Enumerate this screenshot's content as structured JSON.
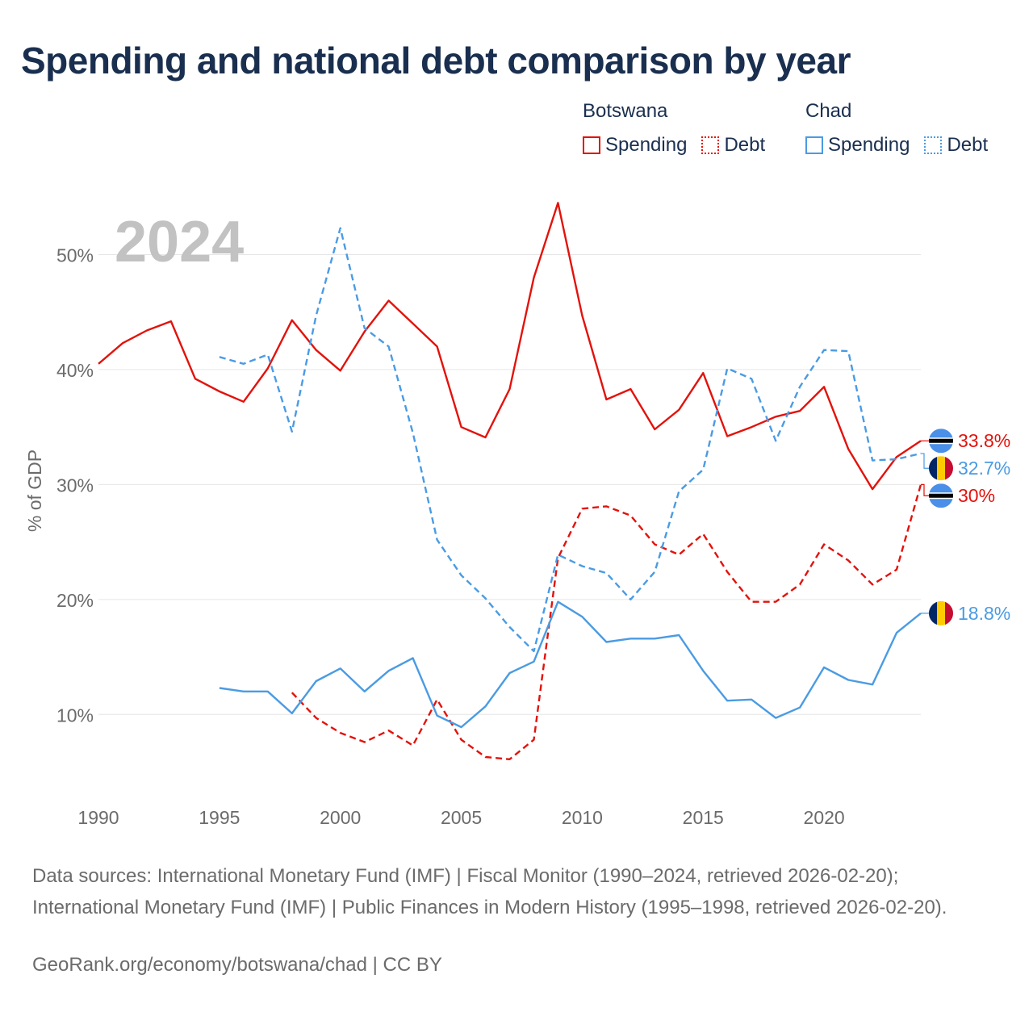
{
  "title": "Spending and national debt comparison by year",
  "legend": {
    "groups": [
      {
        "country": "Botswana",
        "color": "#e3120b",
        "items": [
          {
            "label": "Spending",
            "style": "solid"
          },
          {
            "label": "Debt",
            "style": "dotted"
          }
        ]
      },
      {
        "country": "Chad",
        "color": "#4a9be3",
        "items": [
          {
            "label": "Spending",
            "style": "solid"
          },
          {
            "label": "Debt",
            "style": "dotted"
          }
        ]
      }
    ]
  },
  "year_label": "2024",
  "source_text": "Data sources: International Monetary Fund (IMF) | Fiscal Monitor (1990–2024, retrieved 2026-02-20); International Monetary Fund (IMF) | Public Finances in Modern History (1995–1998, retrieved 2026-02-20).",
  "credit_text": "GeoRank.org/economy/botswana/chad | CC BY",
  "chart_data": {
    "type": "line",
    "title": "Spending and national debt comparison by year",
    "xlabel": "",
    "ylabel": "% of GDP",
    "xlim": [
      1990,
      2024
    ],
    "ylim": [
      3,
      56
    ],
    "x_ticks": [
      1990,
      1995,
      2000,
      2005,
      2010,
      2015,
      2020
    ],
    "x_tick_labels": [
      "1990",
      "1995",
      "2000",
      "2005",
      "2010",
      "2015",
      "2020"
    ],
    "y_ticks": [
      10,
      20,
      30,
      40,
      50
    ],
    "y_tick_labels": [
      "10%",
      "20%",
      "30%",
      "40%",
      "50%"
    ],
    "grid": true,
    "series": [
      {
        "name": "Botswana Spending",
        "country": "Botswana",
        "color": "#e3120b",
        "dash": "solid",
        "x": [
          1990,
          1991,
          1992,
          1993,
          1994,
          1995,
          1996,
          1997,
          1998,
          1999,
          2000,
          2001,
          2002,
          2003,
          2004,
          2005,
          2006,
          2007,
          2008,
          2009,
          2010,
          2011,
          2012,
          2013,
          2014,
          2015,
          2016,
          2017,
          2018,
          2019,
          2020,
          2021,
          2022,
          2023,
          2024
        ],
        "values": [
          40.5,
          42.3,
          43.4,
          44.2,
          39.2,
          38.1,
          37.2,
          40.1,
          44.3,
          41.7,
          39.9,
          43.3,
          46.0,
          44.0,
          42.0,
          35.0,
          34.1,
          38.3,
          48.0,
          54.5,
          44.7,
          37.4,
          38.3,
          34.8,
          36.5,
          39.7,
          34.2,
          35.0,
          35.9,
          36.4,
          38.5,
          33.1,
          29.6,
          32.4,
          33.8
        ],
        "end_label": "33.8%",
        "flag": "botswana"
      },
      {
        "name": "Botswana Debt",
        "country": "Botswana",
        "color": "#e3120b",
        "dash": "dashed",
        "x": [
          1998,
          1999,
          2000,
          2001,
          2002,
          2003,
          2004,
          2005,
          2006,
          2007,
          2008,
          2009,
          2010,
          2011,
          2012,
          2013,
          2014,
          2015,
          2016,
          2017,
          2018,
          2019,
          2020,
          2021,
          2022,
          2023,
          2024
        ],
        "values": [
          11.9,
          9.7,
          8.4,
          7.6,
          8.6,
          7.3,
          11.3,
          7.8,
          6.3,
          6.1,
          7.8,
          23.6,
          27.9,
          28.1,
          27.3,
          24.8,
          23.9,
          25.7,
          22.4,
          19.8,
          19.8,
          21.3,
          24.8,
          23.4,
          21.3,
          22.6,
          30.0
        ],
        "end_label": "30%",
        "flag": "botswana"
      },
      {
        "name": "Chad Spending",
        "country": "Chad",
        "color": "#4a9be3",
        "dash": "solid",
        "x": [
          1995,
          1996,
          1997,
          1998,
          1999,
          2000,
          2001,
          2002,
          2003,
          2004,
          2005,
          2006,
          2007,
          2008,
          2009,
          2010,
          2011,
          2012,
          2013,
          2014,
          2015,
          2016,
          2017,
          2018,
          2019,
          2020,
          2021,
          2022,
          2023,
          2024
        ],
        "values": [
          12.3,
          12.0,
          12.0,
          10.1,
          12.9,
          14.0,
          12.0,
          13.8,
          14.9,
          9.9,
          8.9,
          10.7,
          13.6,
          14.6,
          19.8,
          18.5,
          16.3,
          16.6,
          16.6,
          16.9,
          13.8,
          11.2,
          11.3,
          9.7,
          10.6,
          14.1,
          13.0,
          12.6,
          17.1,
          18.8
        ],
        "end_label": "18.8%",
        "flag": "chad"
      },
      {
        "name": "Chad Debt",
        "country": "Chad",
        "color": "#4a9be3",
        "dash": "dashed",
        "x": [
          1995,
          1996,
          1997,
          1998,
          1999,
          2000,
          2001,
          2002,
          2003,
          2004,
          2005,
          2006,
          2007,
          2008,
          2009,
          2010,
          2011,
          2012,
          2013,
          2014,
          2015,
          2016,
          2017,
          2018,
          2019,
          2020,
          2021,
          2022,
          2023,
          2024
        ],
        "values": [
          41.1,
          40.5,
          41.3,
          34.6,
          44.7,
          52.3,
          43.6,
          42.0,
          34.5,
          25.2,
          22.1,
          20.1,
          17.6,
          15.5,
          23.9,
          22.9,
          22.3,
          20.0,
          22.4,
          29.4,
          31.3,
          40.1,
          39.2,
          33.8,
          38.5,
          41.7,
          41.6,
          32.1,
          32.2,
          32.7
        ],
        "end_label": "32.7%",
        "flag": "chad"
      }
    ]
  }
}
